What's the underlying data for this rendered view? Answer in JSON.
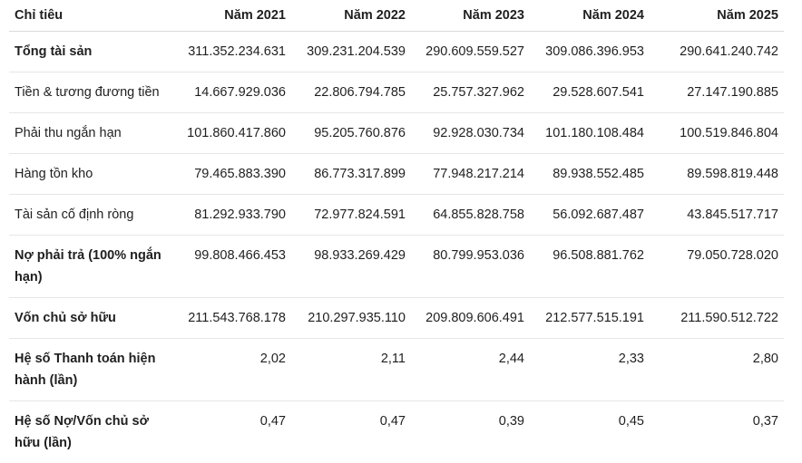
{
  "table": {
    "headers": [
      "Chỉ tiêu",
      "Năm 2021",
      "Năm 2022",
      "Năm 2023",
      "Năm 2024",
      "Năm 2025"
    ],
    "rows": [
      {
        "label": "Tổng tài sản",
        "bold": true,
        "values": [
          "311.352.234.631",
          "309.231.204.539",
          "290.609.559.527",
          "309.086.396.953",
          "290.641.240.742"
        ]
      },
      {
        "label": "Tiền & tương đương tiền",
        "bold": false,
        "values": [
          "14.667.929.036",
          "22.806.794.785",
          "25.757.327.962",
          "29.528.607.541",
          "27.147.190.885"
        ]
      },
      {
        "label": "Phải thu ngắn hạn",
        "bold": false,
        "values": [
          "101.860.417.860",
          "95.205.760.876",
          "92.928.030.734",
          "101.180.108.484",
          "100.519.846.804"
        ]
      },
      {
        "label": "Hàng tồn kho",
        "bold": false,
        "values": [
          "79.465.883.390",
          "86.773.317.899",
          "77.948.217.214",
          "89.938.552.485",
          "89.598.819.448"
        ]
      },
      {
        "label": "Tài sản cố định ròng",
        "bold": false,
        "values": [
          "81.292.933.790",
          "72.977.824.591",
          "64.855.828.758",
          "56.092.687.487",
          "43.845.517.717"
        ]
      },
      {
        "label": "Nợ phải trả (100% ngắn hạn)",
        "bold": true,
        "values": [
          "99.808.466.453",
          "98.933.269.429",
          "80.799.953.036",
          "96.508.881.762",
          "79.050.728.020"
        ]
      },
      {
        "label": "Vốn chủ sở hữu",
        "bold": true,
        "values": [
          "211.543.768.178",
          "210.297.935.110",
          "209.809.606.491",
          "212.577.515.191",
          "211.590.512.722"
        ]
      },
      {
        "label": "Hệ số Thanh toán hiện hành (lần)",
        "bold": true,
        "values": [
          "2,02",
          "2,11",
          "2,44",
          "2,33",
          "2,80"
        ]
      },
      {
        "label": "Hệ số Nợ/Vốn chủ sở hữu (lần)",
        "bold": true,
        "values": [
          "0,47",
          "0,47",
          "0,39",
          "0,45",
          "0,37"
        ]
      }
    ]
  }
}
